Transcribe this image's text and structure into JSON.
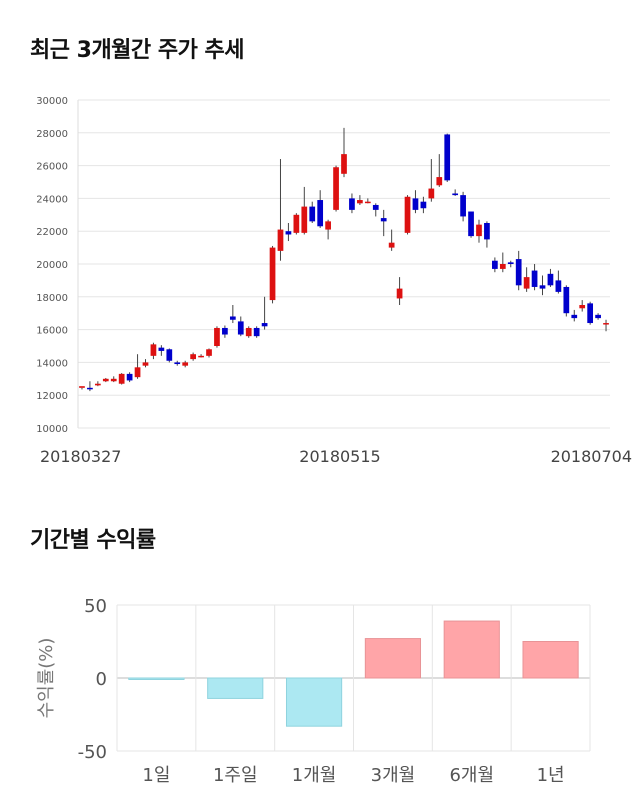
{
  "sections": {
    "price_title": "최근 3개월간 주가 추세",
    "return_title": "기간별 수익률"
  },
  "colors": {
    "up": "#dd1111",
    "down": "#0000cc",
    "positive_bar": "#ffa5a8",
    "negative_bar": "#ace8f2",
    "grid": "#e5e5e5"
  },
  "chart_data": [
    {
      "type": "candlestick",
      "title": "",
      "y_ticks": [
        10000,
        12000,
        14000,
        16000,
        18000,
        20000,
        22000,
        24000,
        26000,
        28000,
        30000
      ],
      "ylim": [
        10000,
        30000
      ],
      "x_tick_labels": [
        "20180327",
        "20180515",
        "20180704"
      ],
      "grid": true,
      "candles": [
        [
          12450,
          12550,
          12350,
          12450
        ],
        [
          12450,
          12400,
          12250,
          12850
        ],
        [
          12600,
          12700,
          12550,
          12850
        ],
        [
          12850,
          13000,
          12800,
          13050
        ],
        [
          12850,
          13000,
          12800,
          13150
        ],
        [
          12700,
          13300,
          12650,
          13350
        ],
        [
          13300,
          12900,
          12800,
          13400
        ],
        [
          13100,
          13700,
          13000,
          14500
        ],
        [
          13800,
          14000,
          13700,
          14200
        ],
        [
          14400,
          15100,
          14200,
          15200
        ],
        [
          14900,
          14700,
          14400,
          15050
        ],
        [
          14800,
          14100,
          14000,
          14850
        ],
        [
          14000,
          13900,
          13800,
          14100
        ],
        [
          13800,
          14000,
          13700,
          14100
        ],
        [
          14200,
          14500,
          14100,
          14600
        ],
        [
          14400,
          14400,
          14300,
          14500
        ],
        [
          14400,
          14800,
          14300,
          14850
        ],
        [
          15000,
          16100,
          14900,
          16200
        ],
        [
          16100,
          15700,
          15500,
          16250
        ],
        [
          16800,
          16600,
          16400,
          17500
        ],
        [
          16500,
          15700,
          15600,
          16800
        ],
        [
          15600,
          16100,
          15500,
          16200
        ],
        [
          16100,
          15600,
          15500,
          16200
        ],
        [
          16400,
          16200,
          16000,
          18000
        ],
        [
          17800,
          21000,
          17600,
          21100
        ],
        [
          20800,
          22100,
          20200,
          26400
        ],
        [
          22000,
          21800,
          21400,
          22500
        ],
        [
          21900,
          23000,
          21800,
          23100
        ],
        [
          21900,
          23500,
          21800,
          24700
        ],
        [
          23500,
          22600,
          22500,
          23800
        ],
        [
          23900,
          22300,
          22200,
          24500
        ],
        [
          22100,
          22600,
          21500,
          22700
        ],
        [
          23300,
          25900,
          23200,
          26000
        ],
        [
          25500,
          26700,
          25300,
          28300
        ],
        [
          24000,
          23300,
          23100,
          24300
        ],
        [
          23700,
          23900,
          23600,
          24200
        ],
        [
          23800,
          23800,
          23700,
          24000
        ],
        [
          23600,
          23300,
          22900,
          23700
        ],
        [
          22800,
          22600,
          21700,
          23300
        ],
        [
          21000,
          21300,
          20800,
          22100
        ],
        [
          17900,
          18500,
          17500,
          19200
        ],
        [
          21900,
          24100,
          21800,
          24200
        ],
        [
          24000,
          23300,
          23100,
          24500
        ],
        [
          23800,
          23400,
          23100,
          24100
        ],
        [
          24000,
          24600,
          23800,
          26400
        ],
        [
          24800,
          25300,
          24700,
          26700
        ],
        [
          27900,
          25100,
          25000,
          27950
        ],
        [
          24300,
          24200,
          24150,
          24550
        ],
        [
          24200,
          22900,
          22600,
          24400
        ],
        [
          23200,
          21700,
          21600,
          23200
        ],
        [
          21700,
          22400,
          21300,
          22700
        ],
        [
          22500,
          21500,
          21000,
          22600
        ],
        [
          20200,
          19700,
          19500,
          20400
        ],
        [
          19700,
          20000,
          19500,
          20700
        ],
        [
          20100,
          20000,
          19800,
          20200
        ],
        [
          20300,
          18700,
          18400,
          20800
        ],
        [
          18500,
          19200,
          18300,
          19800
        ],
        [
          19600,
          18600,
          18400,
          20000
        ],
        [
          18700,
          18500,
          18100,
          19300
        ],
        [
          19400,
          18700,
          18600,
          19700
        ],
        [
          19000,
          18300,
          18200,
          19600
        ],
        [
          18600,
          17000,
          16800,
          18700
        ],
        [
          16900,
          16700,
          16500,
          17200
        ],
        [
          17300,
          17500,
          17100,
          17800
        ],
        [
          17600,
          16400,
          16300,
          17700
        ],
        [
          16900,
          16700,
          16600,
          17000
        ],
        [
          16400,
          16400,
          15900,
          16600
        ]
      ]
    },
    {
      "type": "bar",
      "title": "",
      "ylabel": "수익률(%)",
      "categories": [
        "1일",
        "1주일",
        "1개월",
        "3개월",
        "6개월",
        "1년"
      ],
      "values": [
        -1.0,
        -14.0,
        -33.0,
        27.0,
        39.0,
        25.0
      ],
      "ylim": [
        -50,
        50
      ],
      "y_ticks": [
        -50,
        0,
        50
      ],
      "grid": true
    }
  ]
}
